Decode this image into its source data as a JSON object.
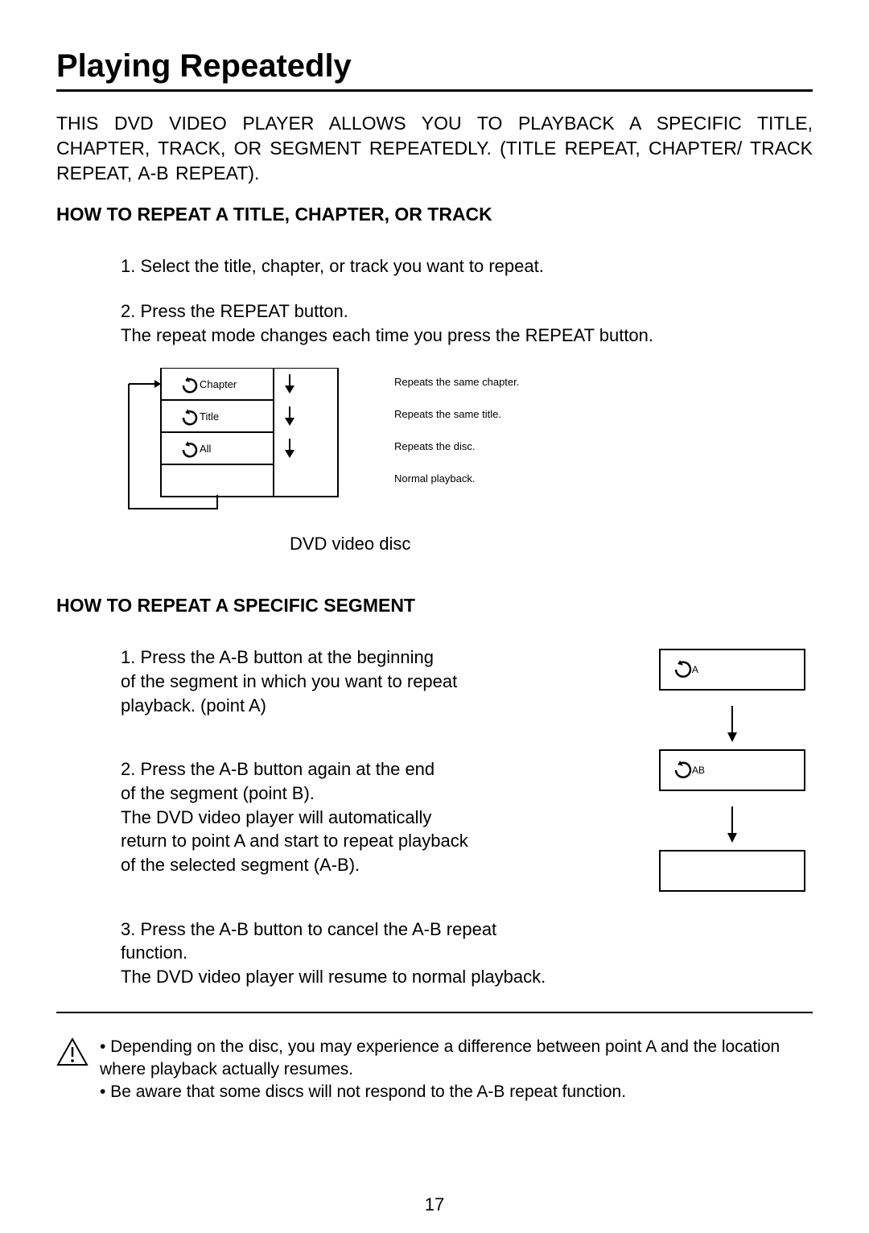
{
  "title": "Playing Repeatedly",
  "intro": "THIS DVD VIDEO PLAYER ALLOWS YOU TO PLAYBACK A SPECIFIC TITLE, CHAPTER, TRACK, OR SEGMENT REPEATEDLY. (TITLE REPEAT, CHAPTER/ TRACK REPEAT, A-B REPEAT).",
  "section1": {
    "heading": "HOW TO REPEAT A TITLE, CHAPTER, OR TRACK",
    "step1": "1. Select the title, chapter, or track you want to repeat.",
    "step2a": "2. Press the REPEAT button.",
    "step2b": "The repeat mode changes each time you press the REPEAT button.",
    "diagram": {
      "rows": [
        {
          "label": "Chapter",
          "desc": "Repeats the same chapter."
        },
        {
          "label": "Title",
          "desc": "Repeats the same title."
        },
        {
          "label": "All",
          "desc": "Repeats the disc."
        },
        {
          "label": "",
          "desc": "Normal playback."
        }
      ],
      "caption": "DVD video disc"
    }
  },
  "section2": {
    "heading": "HOW TO REPEAT A SPECIFIC SEGMENT",
    "step1": "1. Press the A-B button at the beginning\n of the segment in which you want to repeat\n playback. (point A)",
    "step2": "2. Press the A-B button again at the end\n of the segment (point B).\nThe DVD video player will automatically\n return to point A and start to repeat playback\nof the selected segment (A-B).",
    "step3": "3. Press the A-B button to cancel the A-B repeat\n function.\nThe DVD video player will resume to normal playback.",
    "diagram": {
      "box1": "A",
      "box2": "AB"
    }
  },
  "footnotes": {
    "n1": "• Depending on the disc, you may experience a difference between point A and the location where playback actually resumes.",
    "n2": "• Be aware that some discs will not respond to the A-B repeat function."
  },
  "pageNumber": "17",
  "colors": {
    "text": "#000000",
    "line": "#000000",
    "bg": "#ffffff"
  },
  "fonts": {
    "body_size": 22,
    "title_size": 40,
    "heading_size": 23,
    "diagram_small": 12
  }
}
